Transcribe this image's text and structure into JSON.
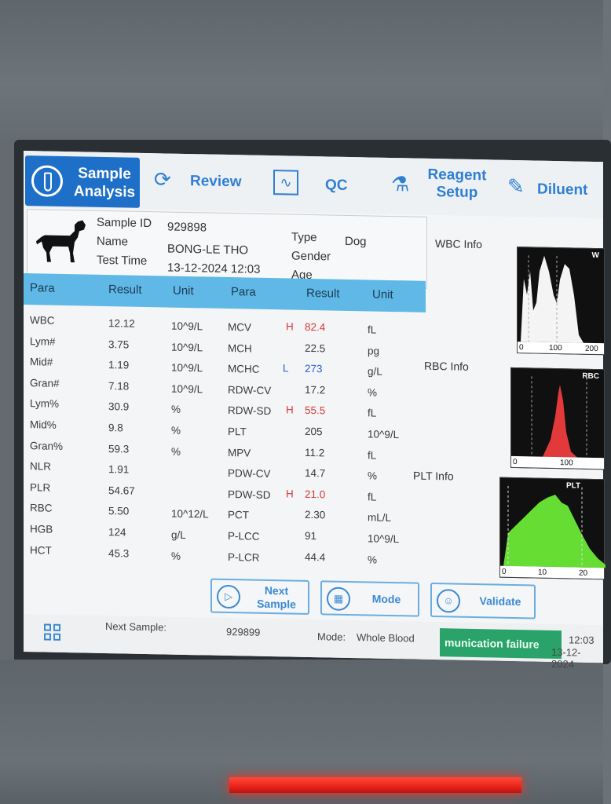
{
  "nav": {
    "sample_analysis": "Sample\nAnalysis",
    "review": "Review",
    "qc": "QC",
    "reagent_setup": "Reagent\nSetup",
    "diluent": "Diluent"
  },
  "patient": {
    "sample_id_label": "Sample ID",
    "sample_id": "929898",
    "name_label": "Name",
    "name": "BONG-LE THO",
    "test_time_label": "Test Time",
    "test_time": "13-12-2024 12:03",
    "type_label": "Type",
    "type": "Dog",
    "gender_label": "Gender",
    "age_label": "Age"
  },
  "table": {
    "headers": {
      "para": "Para",
      "result": "Result",
      "unit": "Unit"
    },
    "left_rows": [
      {
        "para": "WBC",
        "result": "12.12",
        "unit": "10^9/L"
      },
      {
        "para": "Lym#",
        "result": "3.75",
        "unit": "10^9/L"
      },
      {
        "para": "Mid#",
        "result": "1.19",
        "unit": "10^9/L"
      },
      {
        "para": "Gran#",
        "result": "7.18",
        "unit": "10^9/L"
      },
      {
        "para": "Lym%",
        "result": "30.9",
        "unit": "%"
      },
      {
        "para": "Mid%",
        "result": "9.8",
        "unit": "%"
      },
      {
        "para": "Gran%",
        "result": "59.3",
        "unit": "%"
      },
      {
        "para": "NLR",
        "result": "1.91",
        "unit": ""
      },
      {
        "para": "PLR",
        "result": "54.67",
        "unit": ""
      },
      {
        "para": "RBC",
        "result": "5.50",
        "unit": "10^12/L"
      },
      {
        "para": "HGB",
        "result": "124",
        "unit": "g/L"
      },
      {
        "para": "HCT",
        "result": "45.3",
        "unit": "%"
      }
    ],
    "right_rows": [
      {
        "para": "MCV",
        "flag": "H",
        "result": "82.4",
        "unit": "fL"
      },
      {
        "para": "MCH",
        "flag": "",
        "result": "22.5",
        "unit": "pg"
      },
      {
        "para": "MCHC",
        "flag": "L",
        "result": "273",
        "unit": "g/L"
      },
      {
        "para": "RDW-CV",
        "flag": "",
        "result": "17.2",
        "unit": "%"
      },
      {
        "para": "RDW-SD",
        "flag": "H",
        "result": "55.5",
        "unit": "fL"
      },
      {
        "para": "PLT",
        "flag": "",
        "result": "205",
        "unit": "10^9/L"
      },
      {
        "para": "MPV",
        "flag": "",
        "result": "11.2",
        "unit": "fL"
      },
      {
        "para": "PDW-CV",
        "flag": "",
        "result": "14.7",
        "unit": "%"
      },
      {
        "para": "PDW-SD",
        "flag": "H",
        "result": "21.0",
        "unit": "fL"
      },
      {
        "para": "PCT",
        "flag": "",
        "result": "2.30",
        "unit": "mL/L"
      },
      {
        "para": "P-LCC",
        "flag": "",
        "result": "91",
        "unit": "10^9/L"
      },
      {
        "para": "P-LCR",
        "flag": "",
        "result": "44.4",
        "unit": "%"
      }
    ]
  },
  "info": {
    "wbc": "WBC Info",
    "rbc": "RBC Info",
    "plt": "PLT Info"
  },
  "histograms": {
    "wbc": {
      "title": "W",
      "ticks": [
        "0",
        "100",
        "200"
      ],
      "color": "#ffffff"
    },
    "rbc": {
      "title": "RBC",
      "ticks": [
        "0",
        "100"
      ],
      "color": "#e23a3a"
    },
    "plt": {
      "title": "PLT",
      "ticks": [
        "0",
        "10",
        "20"
      ],
      "color": "#66dd33"
    }
  },
  "buttons": {
    "next_sample": "Next\nSample",
    "mode": "Mode",
    "validate": "Validate"
  },
  "status": {
    "next_sample_label": "Next Sample:",
    "next_sample": "929899",
    "mode_label": "Mode:",
    "mode": "Whole Blood",
    "comm": "munication failure",
    "time": "12:03",
    "date": "13-12-2024"
  },
  "colors": {
    "accent": "#1e6fc8",
    "table_header": "#5fb8e6",
    "flag_high": "#d63a3a",
    "flag_low": "#2c5fd8",
    "status_green": "#2aa36a"
  }
}
